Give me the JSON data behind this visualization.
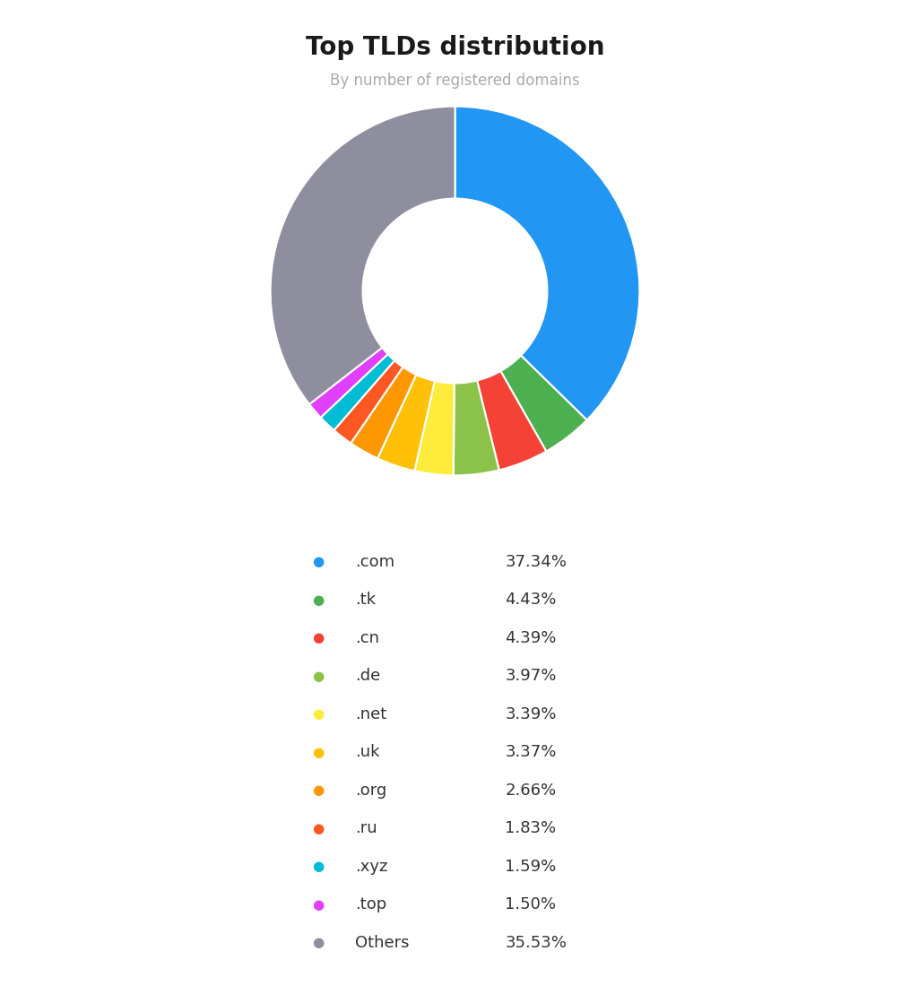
{
  "title": "Top TLDs distribution",
  "subtitle": "By number of registered domains",
  "labels": [
    ".com",
    ".tk",
    ".cn",
    ".de",
    ".net",
    ".uk",
    ".org",
    ".ru",
    ".xyz",
    ".top",
    "Others"
  ],
  "values": [
    37.34,
    4.43,
    4.39,
    3.97,
    3.39,
    3.37,
    2.66,
    1.83,
    1.59,
    1.5,
    35.53
  ],
  "colors": [
    "#2196F3",
    "#4CAF50",
    "#F44336",
    "#8BC34A",
    "#FFEB3B",
    "#FFC107",
    "#FF9800",
    "#FF5722",
    "#00BCD4",
    "#E040FB",
    "#8E8E9E"
  ],
  "background_color": "#FFFFFF",
  "title_fontsize": 20,
  "subtitle_fontsize": 12,
  "legend_label_fontsize": 13,
  "legend_pct_fontsize": 13
}
